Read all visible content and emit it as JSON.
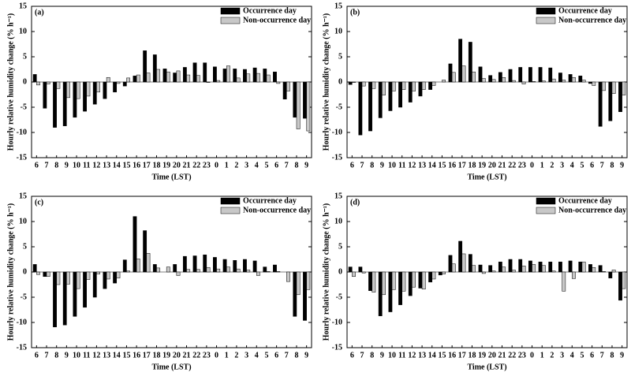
{
  "chart_data": [
    {
      "type": "bar",
      "panel_label": "(a)",
      "x_label": "Time (LST)",
      "y_label": "Hourly relative humidity change (% h⁻¹)",
      "categories": [
        "6",
        "7",
        "8",
        "9",
        "10",
        "11",
        "12",
        "13",
        "14",
        "15",
        "16",
        "17",
        "18",
        "19",
        "20",
        "21",
        "22",
        "23",
        "0",
        "1",
        "2",
        "3",
        "4",
        "5",
        "6",
        "7",
        "8",
        "9"
      ],
      "series": [
        {
          "name": "Occurrence day",
          "color": "#000000",
          "values": [
            1.5,
            -5.2,
            -9,
            -8.7,
            -7,
            -5.8,
            -4.4,
            -3.3,
            -2,
            -0.8,
            1.2,
            6.2,
            5.4,
            2.6,
            1.8,
            2.9,
            3.8,
            3.8,
            3,
            2.6,
            2.6,
            2.5,
            2.8,
            2.6,
            2,
            -3.4,
            -7,
            -7.2
          ]
        },
        {
          "name": "Non-occurrence day",
          "color": "#c8c8c8",
          "values": [
            -0.6,
            -0.4,
            -1.3,
            -3.1,
            -3.3,
            -2.8,
            -2,
            0.9,
            -0.3,
            0.8,
            1.4,
            1.8,
            2.5,
            2,
            2.2,
            1.4,
            1.3,
            -0.1,
            0.3,
            3.2,
            0.8,
            1.6,
            1.7,
            1.4,
            -0.3,
            -1.8,
            -9.3,
            -9.7
          ]
        }
      ],
      "ylim": [
        -15,
        15
      ],
      "yticks": [
        -15,
        -10,
        -5,
        0,
        5,
        10,
        15
      ],
      "legend": "upper right"
    },
    {
      "type": "bar",
      "panel_label": "(b)",
      "x_label": "Time (LST)",
      "y_label": "Hourly relative humidity change (% h⁻¹)",
      "categories": [
        "6",
        "7",
        "8",
        "9",
        "10",
        "11",
        "12",
        "13",
        "14",
        "15",
        "16",
        "17",
        "18",
        "19",
        "20",
        "21",
        "22",
        "23",
        "0",
        "1",
        "2",
        "3",
        "4",
        "5",
        "6",
        "7",
        "8",
        "9"
      ],
      "series": [
        {
          "name": "Occurrence day",
          "color": "#000000",
          "values": [
            -0.5,
            -10.5,
            -9.7,
            -7.1,
            -5.7,
            -5,
            -4,
            -2.8,
            -1.5,
            0,
            3.6,
            8.5,
            7.9,
            3,
            1.3,
            1.9,
            2.5,
            2.9,
            2.9,
            2.9,
            2.8,
            1.8,
            1.5,
            1.2,
            -0.3,
            -8.8,
            -7.7,
            -5.9
          ]
        },
        {
          "name": "Non-occurrence day",
          "color": "#c8c8c8",
          "values": [
            -0.1,
            -0.8,
            -1.3,
            -2.6,
            -1.8,
            -1.5,
            -1.8,
            -1.5,
            -0.7,
            0.4,
            1.9,
            3.2,
            2,
            0.7,
            0.5,
            0.9,
            0.3,
            -0.4,
            0.1,
            0.2,
            0.6,
            0.4,
            0.9,
            0.4,
            -0.7,
            -1.7,
            -2.3,
            -2.6
          ]
        }
      ],
      "ylim": [
        -15,
        15
      ],
      "yticks": [
        -15,
        -10,
        -5,
        0,
        5,
        10,
        15
      ],
      "legend": "upper right"
    },
    {
      "type": "bar",
      "panel_label": "(c)",
      "x_label": "Time (LST)",
      "y_label": "Hourly relative humidity change (% h⁻¹)",
      "categories": [
        "6",
        "7",
        "8",
        "9",
        "10",
        "11",
        "12",
        "13",
        "14",
        "15",
        "16",
        "17",
        "18",
        "19",
        "20",
        "21",
        "22",
        "23",
        "0",
        "1",
        "2",
        "3",
        "4",
        "5",
        "6",
        "7",
        "8",
        "9"
      ],
      "series": [
        {
          "name": "Occurrence day",
          "color": "#000000",
          "values": [
            1.5,
            -0.9,
            -10.9,
            -10.5,
            -8.8,
            -7,
            -5,
            -3.3,
            -2.2,
            2.4,
            11,
            8.2,
            1.5,
            0,
            1.5,
            3.1,
            3.2,
            3.4,
            2.9,
            2.5,
            2.3,
            2.5,
            2.2,
            1,
            1.4,
            0,
            -8.8,
            -9.6
          ]
        },
        {
          "name": "Non-occurrence day",
          "color": "#c8c8c8",
          "values": [
            -0.5,
            -0.9,
            -2.5,
            -2.4,
            -3.3,
            -1.5,
            -0.4,
            -1.4,
            -1.2,
            0.2,
            2.6,
            3.7,
            0.8,
            1,
            -0.7,
            0.5,
            0.5,
            0.9,
            0.6,
            1,
            0.6,
            0.4,
            -0.7,
            0.1,
            0.1,
            -1.9,
            -4.5,
            -3.5
          ]
        }
      ],
      "ylim": [
        -15,
        15
      ],
      "yticks": [
        -15,
        -10,
        -5,
        0,
        5,
        10,
        15
      ],
      "legend": "upper right"
    },
    {
      "type": "bar",
      "panel_label": "(d)",
      "x_label": "Time (LST)",
      "y_label": "Hourly relative humidity change (% h⁻¹)",
      "categories": [
        "6",
        "7",
        "8",
        "9",
        "10",
        "11",
        "12",
        "13",
        "14",
        "15",
        "16",
        "17",
        "18",
        "19",
        "20",
        "21",
        "22",
        "23",
        "0",
        "1",
        "2",
        "3",
        "4",
        "5",
        "6",
        "7",
        "8",
        "9"
      ],
      "series": [
        {
          "name": "Occurrence day",
          "color": "#000000",
          "values": [
            1,
            1,
            -3.7,
            -8.7,
            -7.9,
            -6.5,
            -4.7,
            -3.2,
            -2,
            -0.6,
            3.3,
            6.1,
            3.5,
            1.4,
            1.3,
            2,
            2.5,
            2.5,
            2.2,
            2,
            2,
            2,
            2.2,
            2,
            1.5,
            1.3,
            -1.2,
            -5.6
          ]
        },
        {
          "name": "Non-occurrence day",
          "color": "#c8c8c8",
          "values": [
            -0.9,
            -0.2,
            -4,
            -4.5,
            -3.5,
            -3.8,
            -3,
            -3.4,
            -1.4,
            -0.4,
            1.6,
            3.6,
            1.3,
            -0.3,
            0.2,
            1,
            0.4,
            1.2,
            1.5,
            1.3,
            0.2,
            -3.8,
            -1.3,
            2,
            0.9,
            0.1,
            0.4,
            -3.3
          ]
        }
      ],
      "ylim": [
        -15,
        15
      ],
      "yticks": [
        -15,
        -10,
        -5,
        0,
        5,
        10,
        15
      ],
      "legend": "upper right"
    }
  ]
}
